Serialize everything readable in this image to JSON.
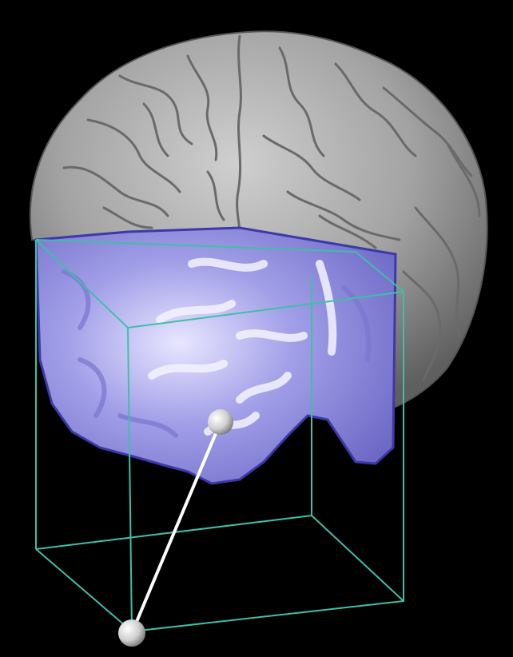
{
  "scene": {
    "background_color": "#000000",
    "brain_color": "#9c9c9c",
    "sulci_color": "#6a6a6a",
    "highlight_region_color": "#9b98e6",
    "highlight_edge_color": "#3a3aa8",
    "bounding_box_color": "#3fbfa6",
    "probe_color": "#ffffff",
    "probe_marker_color": "#d9d9d9"
  },
  "icons": {
    "brain": "brain-render",
    "box": "bounding-box",
    "probe": "probe-line"
  }
}
